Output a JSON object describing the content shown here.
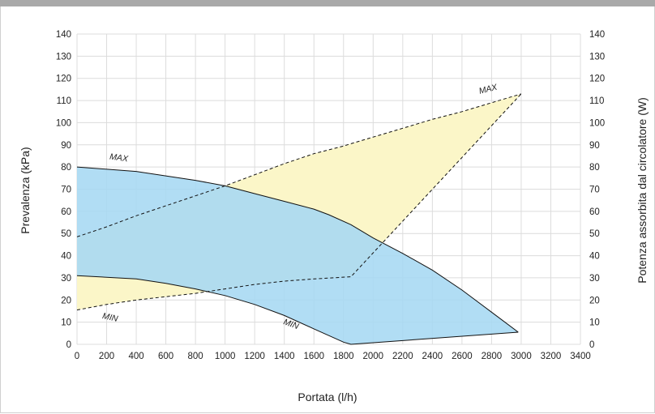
{
  "chart_data": {
    "type": "area",
    "title": "",
    "xlabel": "Portata (l/h)",
    "ylabel": "Prevalenza (kPa)",
    "ylabel_right": "Potenza assorbita dal circolatore (W)",
    "xlim": [
      0,
      3400
    ],
    "ylim": [
      0,
      140
    ],
    "x_ticks": [
      0,
      200,
      400,
      600,
      800,
      1000,
      1200,
      1400,
      1600,
      1800,
      2000,
      2200,
      2400,
      2600,
      2800,
      3000,
      3200,
      3400
    ],
    "y_ticks": [
      0,
      10,
      20,
      30,
      40,
      50,
      60,
      70,
      80,
      90,
      100,
      110,
      120,
      130,
      140
    ],
    "y_right_ticks": [
      0,
      10,
      20,
      30,
      40,
      50,
      60,
      70,
      80,
      90,
      100,
      110,
      120,
      130,
      140
    ],
    "grid": true,
    "colors": {
      "head_fill": "#a6d8f2",
      "power_fill": "#fbf6c8",
      "overlap_fill": "#a8d6de",
      "grid": "#dcdcdc",
      "line": "#111111"
    },
    "series": [
      {
        "kind": "head_max",
        "label": "MAX",
        "x": [
          0,
          400,
          800,
          1000,
          1200,
          1400,
          1600,
          1700,
          1850,
          2000,
          2200,
          2400,
          2600,
          2800,
          2980
        ],
        "y": [
          80,
          78,
          74,
          71.5,
          68,
          64.5,
          61,
          58.5,
          54,
          48,
          41,
          33.5,
          24.5,
          14.5,
          5.5
        ]
      },
      {
        "kind": "head_min",
        "label": "MIN",
        "x": [
          0,
          400,
          600,
          800,
          1000,
          1200,
          1400,
          1600,
          1800,
          1850,
          2980
        ],
        "y": [
          31,
          29.5,
          27.5,
          25,
          22,
          18,
          13,
          7,
          1,
          0,
          5.5
        ]
      },
      {
        "kind": "power_max",
        "label": "MAX",
        "x": [
          0,
          200,
          400,
          600,
          800,
          1000,
          1200,
          1400,
          1600,
          1800,
          1850,
          2000,
          2200,
          2400,
          2600,
          2800,
          3000
        ],
        "y": [
          48.5,
          53,
          58,
          62.5,
          67,
          71.5,
          76.5,
          81.5,
          86,
          89.5,
          90.5,
          93.5,
          97.5,
          101.5,
          105,
          109,
          113
        ]
      },
      {
        "kind": "power_min",
        "label": "MIN",
        "x": [
          0,
          200,
          400,
          600,
          800,
          1000,
          1200,
          1400,
          1600,
          1850,
          3000
        ],
        "y": [
          15.5,
          18,
          20,
          21.5,
          23,
          25,
          27,
          28.5,
          29.5,
          30.5,
          113
        ]
      }
    ]
  }
}
